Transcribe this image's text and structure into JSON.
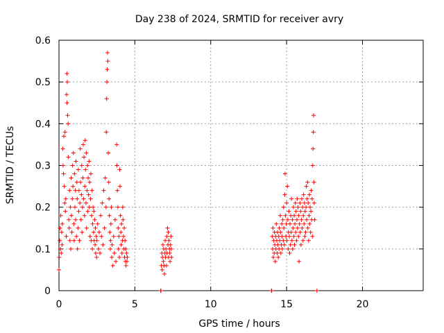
{
  "chart_data": {
    "type": "scatter",
    "title": "Day 238 of 2024, SRMTID for receiver avry",
    "xlabel": "GPS time / hours",
    "ylabel": "SRMTID / TECUs",
    "xlim": [
      0,
      24
    ],
    "ylim": [
      0,
      0.6
    ],
    "x_ticks": [
      0,
      5,
      10,
      15,
      20
    ],
    "x_tick_labels": [
      "0",
      "5",
      "10",
      "15",
      "20"
    ],
    "y_ticks": [
      0,
      0.1,
      0.2,
      0.3,
      0.4,
      0.5,
      0.6
    ],
    "y_tick_labels": [
      "0",
      "0.1",
      "0.2",
      "0.3",
      "0.4",
      "0.5",
      "0.6"
    ],
    "grid": true,
    "marker": "plus",
    "series": [
      {
        "name": "SRMTID",
        "color": "#ff0000",
        "points": [
          [
            0.0,
            0.05
          ],
          [
            0.02,
            0.08
          ],
          [
            0.05,
            0.12
          ],
          [
            0.07,
            0.15
          ],
          [
            0.1,
            0.1
          ],
          [
            0.12,
            0.18
          ],
          [
            0.15,
            0.09
          ],
          [
            0.18,
            0.14
          ],
          [
            0.2,
            0.11
          ],
          [
            0.22,
            0.16
          ],
          [
            0.25,
            0.34
          ],
          [
            0.27,
            0.3
          ],
          [
            0.3,
            0.28
          ],
          [
            0.32,
            0.37
          ],
          [
            0.35,
            0.25
          ],
          [
            0.38,
            0.21
          ],
          [
            0.4,
            0.38
          ],
          [
            0.42,
            0.19
          ],
          [
            0.45,
            0.22
          ],
          [
            0.48,
            0.13
          ],
          [
            0.5,
            0.47
          ],
          [
            0.52,
            0.52
          ],
          [
            0.53,
            0.45
          ],
          [
            0.55,
            0.5
          ],
          [
            0.57,
            0.42
          ],
          [
            0.6,
            0.4
          ],
          [
            0.62,
            0.32
          ],
          [
            0.65,
            0.17
          ],
          [
            0.67,
            0.15
          ],
          [
            0.7,
            0.24
          ],
          [
            0.72,
            0.12
          ],
          [
            0.75,
            0.2
          ],
          [
            0.78,
            0.1
          ],
          [
            0.8,
            0.27
          ],
          [
            0.82,
            0.18
          ],
          [
            0.85,
            0.14
          ],
          [
            0.88,
            0.22
          ],
          [
            0.9,
            0.3
          ],
          [
            0.92,
            0.25
          ],
          [
            0.95,
            0.33
          ],
          [
            0.98,
            0.16
          ],
          [
            1.0,
            0.12
          ],
          [
            1.02,
            0.28
          ],
          [
            1.05,
            0.2
          ],
          [
            1.08,
            0.24
          ],
          [
            1.1,
            0.17
          ],
          [
            1.12,
            0.31
          ],
          [
            1.15,
            0.13
          ],
          [
            1.18,
            0.26
          ],
          [
            1.2,
            0.22
          ],
          [
            1.22,
            0.1
          ],
          [
            1.25,
            0.15
          ],
          [
            1.28,
            0.29
          ],
          [
            1.3,
            0.19
          ],
          [
            1.32,
            0.24
          ],
          [
            1.35,
            0.12
          ],
          [
            1.38,
            0.21
          ],
          [
            1.4,
            0.34
          ],
          [
            1.42,
            0.26
          ],
          [
            1.45,
            0.17
          ],
          [
            1.48,
            0.23
          ],
          [
            1.5,
            0.3
          ],
          [
            1.52,
            0.14
          ],
          [
            1.55,
            0.2
          ],
          [
            1.58,
            0.27
          ],
          [
            1.6,
            0.35
          ],
          [
            1.62,
            0.22
          ],
          [
            1.65,
            0.32
          ],
          [
            1.68,
            0.18
          ],
          [
            1.7,
            0.25
          ],
          [
            1.72,
            0.36
          ],
          [
            1.75,
            0.29
          ],
          [
            1.78,
            0.21
          ],
          [
            1.8,
            0.33
          ],
          [
            1.82,
            0.15
          ],
          [
            1.85,
            0.24
          ],
          [
            1.88,
            0.3
          ],
          [
            1.9,
            0.19
          ],
          [
            1.92,
            0.27
          ],
          [
            1.95,
            0.23
          ],
          [
            1.98,
            0.31
          ],
          [
            2.0,
            0.2
          ],
          [
            2.02,
            0.26
          ],
          [
            2.05,
            0.13
          ],
          [
            2.08,
            0.22
          ],
          [
            2.1,
            0.28
          ],
          [
            2.12,
            0.12
          ],
          [
            2.15,
            0.18
          ],
          [
            2.18,
            0.24
          ],
          [
            2.2,
            0.1
          ],
          [
            2.22,
            0.16
          ],
          [
            2.25,
            0.2
          ],
          [
            2.28,
            0.14
          ],
          [
            2.3,
            0.19
          ],
          [
            2.32,
            0.12
          ],
          [
            2.35,
            0.17
          ],
          [
            2.38,
            0.11
          ],
          [
            2.4,
            0.15
          ],
          [
            2.42,
            0.09
          ],
          [
            2.45,
            0.13
          ],
          [
            2.48,
            0.08
          ],
          [
            2.5,
            0.12
          ],
          [
            2.55,
            0.16
          ],
          [
            2.6,
            0.1
          ],
          [
            2.65,
            0.14
          ],
          [
            2.7,
            0.09
          ],
          [
            2.75,
            0.18
          ],
          [
            2.8,
            0.13
          ],
          [
            2.85,
            0.21
          ],
          [
            2.9,
            0.11
          ],
          [
            2.95,
            0.24
          ],
          [
            3.0,
            0.15
          ],
          [
            3.05,
            0.27
          ],
          [
            3.1,
            0.2
          ],
          [
            3.12,
            0.38
          ],
          [
            3.14,
            0.46
          ],
          [
            3.16,
            0.5
          ],
          [
            3.18,
            0.53
          ],
          [
            3.2,
            0.57
          ],
          [
            3.22,
            0.55
          ],
          [
            3.25,
            0.33
          ],
          [
            3.28,
            0.26
          ],
          [
            3.3,
            0.22
          ],
          [
            3.32,
            0.18
          ],
          [
            3.35,
            0.14
          ],
          [
            3.38,
            0.1
          ],
          [
            3.4,
            0.12
          ],
          [
            3.42,
            0.16
          ],
          [
            3.45,
            0.2
          ],
          [
            3.48,
            0.08
          ],
          [
            3.5,
            0.11
          ],
          [
            3.55,
            0.06
          ],
          [
            3.6,
            0.13
          ],
          [
            3.65,
            0.09
          ],
          [
            3.7,
            0.17
          ],
          [
            3.75,
            0.07
          ],
          [
            3.8,
            0.35
          ],
          [
            3.82,
            0.3
          ],
          [
            3.85,
            0.24
          ],
          [
            3.88,
            0.2
          ],
          [
            3.9,
            0.15
          ],
          [
            3.92,
            0.1
          ],
          [
            3.95,
            0.13
          ],
          [
            3.98,
            0.08
          ],
          [
            4.0,
            0.29
          ],
          [
            4.02,
            0.25
          ],
          [
            4.05,
            0.18
          ],
          [
            4.08,
            0.14
          ],
          [
            4.1,
            0.11
          ],
          [
            4.12,
            0.16
          ],
          [
            4.15,
            0.09
          ],
          [
            4.18,
            0.12
          ],
          [
            4.2,
            0.2
          ],
          [
            4.22,
            0.17
          ],
          [
            4.25,
            0.13
          ],
          [
            4.28,
            0.1
          ],
          [
            4.3,
            0.15
          ],
          [
            4.32,
            0.08
          ],
          [
            4.35,
            0.12
          ],
          [
            4.38,
            0.07
          ],
          [
            4.4,
            0.1
          ],
          [
            4.42,
            0.06
          ],
          [
            4.45,
            0.09
          ],
          [
            4.48,
            0.07
          ],
          [
            4.5,
            0.08
          ],
          [
            6.7,
            0.0
          ],
          [
            6.72,
            0.0
          ],
          [
            6.75,
            0.06
          ],
          [
            6.78,
            0.09
          ],
          [
            6.8,
            0.05
          ],
          [
            6.82,
            0.08
          ],
          [
            6.85,
            0.11
          ],
          [
            6.88,
            0.07
          ],
          [
            6.9,
            0.1
          ],
          [
            6.92,
            0.06
          ],
          [
            6.95,
            0.04
          ],
          [
            6.98,
            0.09
          ],
          [
            7.0,
            0.12
          ],
          [
            7.02,
            0.08
          ],
          [
            7.05,
            0.1
          ],
          [
            7.08,
            0.06
          ],
          [
            7.1,
            0.13
          ],
          [
            7.12,
            0.09
          ],
          [
            7.15,
            0.15
          ],
          [
            7.18,
            0.11
          ],
          [
            7.2,
            0.14
          ],
          [
            7.22,
            0.08
          ],
          [
            7.25,
            0.12
          ],
          [
            7.28,
            0.1
          ],
          [
            7.3,
            0.09
          ],
          [
            7.32,
            0.07
          ],
          [
            7.35,
            0.11
          ],
          [
            7.38,
            0.13
          ],
          [
            7.4,
            0.1
          ],
          [
            7.42,
            0.08
          ],
          [
            14.0,
            0.0
          ],
          [
            14.02,
            0.0
          ],
          [
            14.05,
            0.13
          ],
          [
            14.08,
            0.1
          ],
          [
            14.1,
            0.15
          ],
          [
            14.12,
            0.08
          ],
          [
            14.15,
            0.12
          ],
          [
            14.18,
            0.09
          ],
          [
            14.2,
            0.14
          ],
          [
            14.22,
            0.11
          ],
          [
            14.25,
            0.07
          ],
          [
            14.28,
            0.13
          ],
          [
            14.3,
            0.1
          ],
          [
            14.32,
            0.16
          ],
          [
            14.35,
            0.12
          ],
          [
            14.38,
            0.09
          ],
          [
            14.4,
            0.14
          ],
          [
            14.42,
            0.11
          ],
          [
            14.45,
            0.08
          ],
          [
            14.48,
            0.13
          ],
          [
            14.5,
            0.1
          ],
          [
            14.52,
            0.15
          ],
          [
            14.55,
            0.12
          ],
          [
            14.58,
            0.18
          ],
          [
            14.6,
            0.14
          ],
          [
            14.62,
            0.09
          ],
          [
            14.65,
            0.11
          ],
          [
            14.68,
            0.16
          ],
          [
            14.7,
            0.13
          ],
          [
            14.72,
            0.1
          ],
          [
            14.75,
            0.17
          ],
          [
            14.78,
            0.12
          ],
          [
            14.8,
            0.2
          ],
          [
            14.82,
            0.15
          ],
          [
            14.85,
            0.11
          ],
          [
            14.88,
            0.23
          ],
          [
            14.9,
            0.28
          ],
          [
            14.92,
            0.18
          ],
          [
            14.95,
            0.13
          ],
          [
            14.98,
            0.16
          ],
          [
            15.0,
            0.21
          ],
          [
            15.02,
            0.12
          ],
          [
            15.05,
            0.25
          ],
          [
            15.08,
            0.17
          ],
          [
            15.1,
            0.1
          ],
          [
            15.12,
            0.14
          ],
          [
            15.15,
            0.19
          ],
          [
            15.18,
            0.13
          ],
          [
            15.2,
            0.09
          ],
          [
            15.22,
            0.16
          ],
          [
            15.25,
            0.11
          ],
          [
            15.28,
            0.18
          ],
          [
            15.3,
            0.14
          ],
          [
            15.32,
            0.22
          ],
          [
            15.35,
            0.12
          ],
          [
            15.38,
            0.17
          ],
          [
            15.4,
            0.1
          ],
          [
            15.42,
            0.15
          ],
          [
            15.45,
            0.2
          ],
          [
            15.48,
            0.13
          ],
          [
            15.5,
            0.18
          ],
          [
            15.52,
            0.11
          ],
          [
            15.55,
            0.16
          ],
          [
            15.58,
            0.21
          ],
          [
            15.6,
            0.14
          ],
          [
            15.62,
            0.19
          ],
          [
            15.65,
            0.12
          ],
          [
            15.68,
            0.17
          ],
          [
            15.7,
            0.22
          ],
          [
            15.72,
            0.15
          ],
          [
            15.75,
            0.2
          ],
          [
            15.78,
            0.13
          ],
          [
            15.8,
            0.18
          ],
          [
            15.82,
            0.07
          ],
          [
            15.85,
            0.16
          ],
          [
            15.88,
            0.21
          ],
          [
            15.9,
            0.14
          ],
          [
            15.92,
            0.19
          ],
          [
            15.95,
            0.11
          ],
          [
            15.98,
            0.17
          ],
          [
            16.0,
            0.22
          ],
          [
            16.02,
            0.15
          ],
          [
            16.05,
            0.2
          ],
          [
            16.08,
            0.12
          ],
          [
            16.1,
            0.18
          ],
          [
            16.12,
            0.23
          ],
          [
            16.15,
            0.16
          ],
          [
            16.18,
            0.21
          ],
          [
            16.2,
            0.13
          ],
          [
            16.22,
            0.19
          ],
          [
            16.25,
            0.14
          ],
          [
            16.28,
            0.2
          ],
          [
            16.3,
            0.25
          ],
          [
            16.32,
            0.17
          ],
          [
            16.35,
            0.22
          ],
          [
            16.38,
            0.26
          ],
          [
            16.4,
            0.15
          ],
          [
            16.42,
            0.21
          ],
          [
            16.45,
            0.12
          ],
          [
            16.48,
            0.18
          ],
          [
            16.5,
            0.23
          ],
          [
            16.52,
            0.16
          ],
          [
            16.55,
            0.2
          ],
          [
            16.58,
            0.14
          ],
          [
            16.6,
            0.19
          ],
          [
            16.62,
            0.24
          ],
          [
            16.65,
            0.17
          ],
          [
            16.68,
            0.22
          ],
          [
            16.7,
            0.13
          ],
          [
            16.72,
            0.3
          ],
          [
            16.74,
            0.34
          ],
          [
            16.76,
            0.38
          ],
          [
            16.78,
            0.42
          ],
          [
            16.8,
            0.26
          ],
          [
            16.82,
            0.21
          ],
          [
            16.85,
            0.17
          ],
          [
            17.0,
            0.0
          ]
        ]
      }
    ]
  }
}
